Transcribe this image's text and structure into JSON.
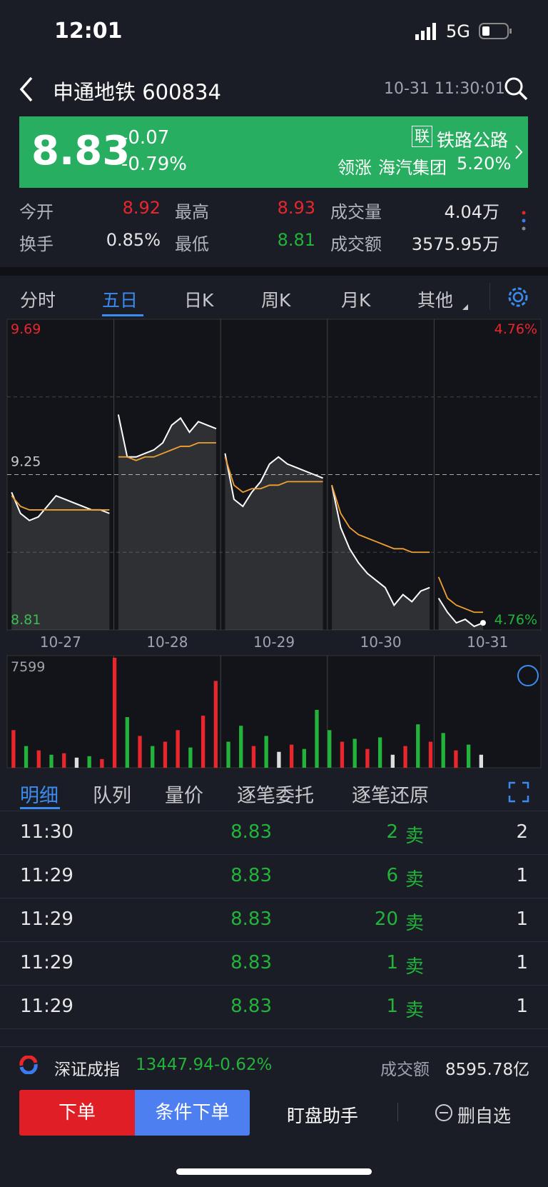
{
  "status": {
    "time": "12:01",
    "network": "5G"
  },
  "header": {
    "title": "申通地铁 600834",
    "timestamp": "10-31 11:30:01"
  },
  "quote": {
    "price": "8.83",
    "change": "-0.07",
    "change_pct": "-0.79%",
    "sector_tag": "联",
    "sector": "铁路公路",
    "lead_label": "领涨",
    "lead_name": "海汽集团",
    "lead_pct": "5.20%"
  },
  "stats": [
    [
      {
        "label": "今开",
        "value": "8.92",
        "color": "red"
      },
      {
        "label": "最高",
        "value": "8.93",
        "color": "red"
      },
      {
        "label": "成交量",
        "value": "4.04万",
        "color": "white"
      }
    ],
    [
      {
        "label": "换手",
        "value": "0.85%",
        "color": "white"
      },
      {
        "label": "最低",
        "value": "8.81",
        "color": "green"
      },
      {
        "label": "成交额",
        "value": "3575.95万",
        "color": "white"
      }
    ]
  ],
  "tabs": [
    "分时",
    "五日",
    "日K",
    "周K",
    "月K",
    "其他"
  ],
  "active_tab": 1,
  "chart_data": [
    {
      "type": "line",
      "days": [
        "10-27",
        "10-28",
        "10-29",
        "10-30",
        "10-31"
      ],
      "ylim": [
        8.81,
        9.69
      ],
      "yticks": [
        {
          "value": 9.69,
          "label": "9.69"
        },
        {
          "value": 9.25,
          "label": "9.25"
        },
        {
          "value": 8.81,
          "label": "8.81"
        }
      ],
      "minor_grid": [
        9.47,
        9.03
      ],
      "right_labels": [
        {
          "label": "4.76%",
          "color": "#e8262c"
        },
        {
          "label": "4.76%",
          "color": "#22b33a"
        }
      ],
      "series": [
        {
          "name": "价格",
          "color": "#ffffff",
          "values": [
            9.2,
            9.14,
            9.12,
            9.13,
            9.16,
            9.19,
            9.18,
            9.17,
            9.16,
            9.15,
            9.15,
            9.14,
            null,
            9.42,
            9.3,
            9.3,
            9.31,
            9.32,
            9.34,
            9.39,
            9.41,
            9.37,
            9.4,
            9.39,
            9.38,
            null,
            9.31,
            9.18,
            9.16,
            9.2,
            9.23,
            9.28,
            9.3,
            9.28,
            9.27,
            9.26,
            9.25,
            9.24,
            null,
            9.22,
            9.1,
            9.04,
            9.0,
            8.97,
            8.95,
            8.93,
            8.88,
            8.91,
            8.89,
            8.92,
            8.93,
            null,
            8.9,
            8.86,
            8.83,
            8.84,
            8.82,
            8.83
          ]
        },
        {
          "name": "均价",
          "color": "#f0a030",
          "values": [
            9.19,
            9.16,
            9.15,
            9.15,
            9.15,
            9.15,
            9.15,
            9.15,
            9.15,
            9.15,
            9.15,
            9.15,
            null,
            9.3,
            9.3,
            9.29,
            9.3,
            9.3,
            9.31,
            9.32,
            9.33,
            9.33,
            9.34,
            9.34,
            9.34,
            null,
            9.3,
            9.22,
            9.2,
            9.21,
            9.21,
            9.22,
            9.22,
            9.23,
            9.23,
            9.23,
            9.23,
            9.23,
            null,
            9.22,
            9.14,
            9.1,
            9.08,
            9.07,
            9.06,
            9.05,
            9.04,
            9.04,
            9.03,
            9.03,
            9.03,
            null,
            8.96,
            8.9,
            8.88,
            8.87,
            8.86,
            8.86
          ]
        }
      ]
    },
    {
      "type": "bar",
      "ylim": [
        0,
        7599
      ],
      "yticks": [
        7599
      ],
      "values": [
        2600,
        1500,
        1200,
        900,
        1000,
        700,
        800,
        600,
        7599,
        3500,
        2200,
        1500,
        1800,
        2600,
        1400,
        3600,
        6000,
        1800,
        2900,
        1500,
        2200,
        1100,
        1600,
        1300,
        4000,
        2600,
        1800,
        2000,
        1300,
        2100,
        900,
        1500,
        3000,
        1800,
        2400,
        1200,
        1600,
        900
      ],
      "colors": [
        "#e8262c",
        "#22b33a",
        "#e8262c",
        "#22b33a",
        "#e8262c",
        "#dddddd",
        "#22b33a",
        "#e8262c",
        "#e8262c",
        "#22b33a",
        "#e8262c",
        "#22b33a",
        "#e8262c",
        "#e8262c",
        "#22b33a",
        "#e8262c",
        "#e8262c",
        "#22b33a",
        "#22b33a",
        "#e8262c",
        "#22b33a",
        "#dddddd",
        "#e8262c",
        "#22b33a",
        "#22b33a",
        "#22b33a",
        "#e8262c",
        "#22b33a",
        "#e8262c",
        "#22b33a",
        "#dddddd",
        "#e8262c",
        "#22b33a",
        "#e8262c",
        "#22b33a",
        "#e8262c",
        "#22b33a",
        "#dddddd"
      ]
    }
  ],
  "detail_tabs": [
    "明细",
    "队列",
    "量价",
    "逐笔委托",
    "逐笔还原"
  ],
  "trades": [
    [
      "11:30",
      "8.83",
      "2",
      "卖",
      "2"
    ],
    [
      "11:29",
      "8.83",
      "6",
      "卖",
      "1"
    ],
    [
      "11:29",
      "8.83",
      "20",
      "卖",
      "1"
    ],
    [
      "11:29",
      "8.83",
      "1",
      "卖",
      "1"
    ],
    [
      "11:29",
      "8.83",
      "1",
      "卖",
      "1"
    ]
  ],
  "index_bar": {
    "name": "深证成指",
    "value": "13447.94",
    "change": "-0.62%",
    "amount_label": "成交额",
    "amount": "8595.78亿"
  },
  "buttons": {
    "order": "下单",
    "conditional": "条件下单",
    "assistant": "盯盘助手",
    "remove": "删自选"
  }
}
